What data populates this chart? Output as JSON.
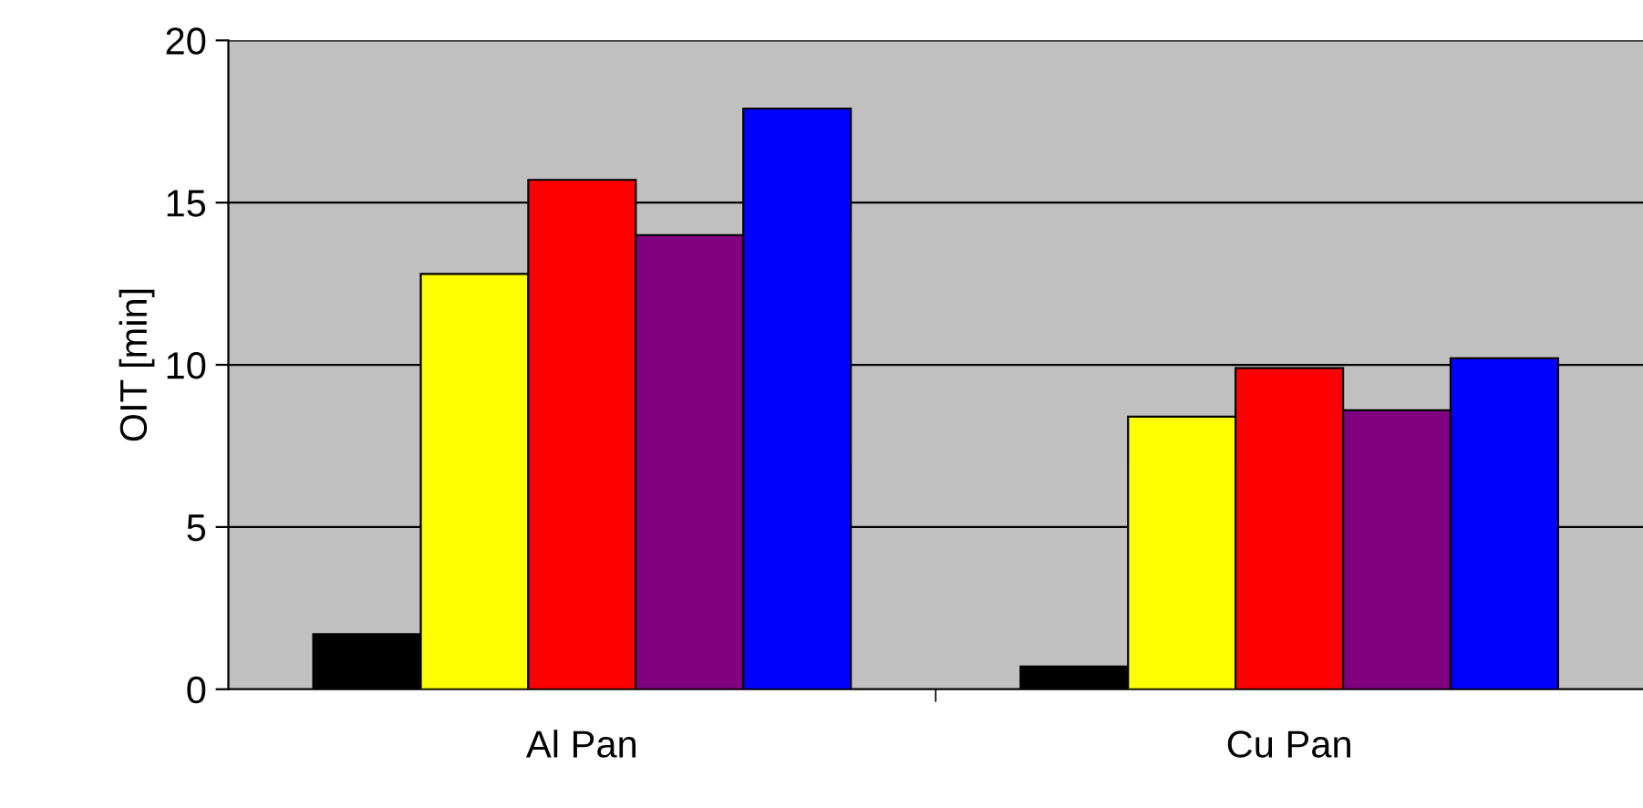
{
  "chart_data": {
    "type": "bar",
    "ylabel": "OIT [min]",
    "categories": [
      "Al Pan",
      "Cu Pan"
    ],
    "series": [
      {
        "color": "#000000",
        "values": [
          1.7,
          0.7
        ]
      },
      {
        "color": "#ffff00",
        "values": [
          12.8,
          8.4
        ]
      },
      {
        "color": "#ff0000",
        "values": [
          15.7,
          9.9
        ]
      },
      {
        "color": "#800080",
        "values": [
          14.0,
          8.6
        ]
      },
      {
        "color": "#0000ff",
        "values": [
          17.9,
          10.2
        ]
      }
    ],
    "ylim": [
      0,
      20
    ],
    "yticks": [
      0,
      5,
      10,
      15,
      20
    ],
    "grid": "y",
    "legend": false
  }
}
